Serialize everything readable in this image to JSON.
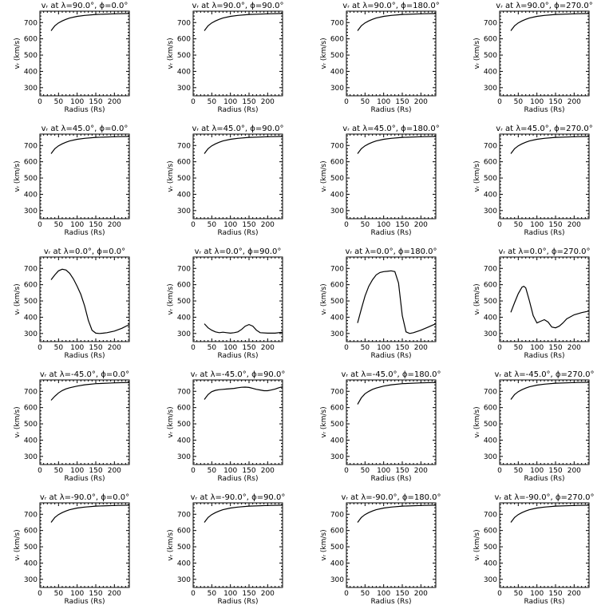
{
  "chart_data": [
    {
      "type": "line",
      "title": "vᵣ at λ=90.0°, ϕ=0.0°",
      "xlabel": "Radius (Rs)",
      "ylabel": "vᵣ (km/s)",
      "xlim": [
        0,
        240
      ],
      "ylim": [
        250,
        770
      ],
      "xticks": [
        0,
        50,
        100,
        150,
        200
      ],
      "yticks": [
        300,
        400,
        500,
        600,
        700
      ],
      "grid": false,
      "series": [
        {
          "x": [
            30,
            40,
            50,
            60,
            70,
            80,
            100,
            120,
            150,
            200,
            240
          ],
          "y": [
            650,
            680,
            698,
            710,
            720,
            728,
            738,
            744,
            750,
            754,
            756
          ]
        }
      ]
    },
    {
      "type": "line",
      "title": "vᵣ at λ=90.0°, ϕ=90.0°",
      "xlabel": "Radius (Rs)",
      "ylabel": "vᵣ (km/s)",
      "xlim": [
        0,
        240
      ],
      "ylim": [
        250,
        770
      ],
      "xticks": [
        0,
        50,
        100,
        150,
        200
      ],
      "yticks": [
        300,
        400,
        500,
        600,
        700
      ],
      "grid": false,
      "series": [
        {
          "x": [
            30,
            40,
            50,
            60,
            70,
            80,
            100,
            120,
            150,
            200,
            240
          ],
          "y": [
            650,
            680,
            698,
            710,
            720,
            728,
            738,
            744,
            750,
            754,
            756
          ]
        }
      ]
    },
    {
      "type": "line",
      "title": "vᵣ at λ=90.0°, ϕ=180.0°",
      "xlabel": "Radius (Rs)",
      "ylabel": "vᵣ (km/s)",
      "xlim": [
        0,
        240
      ],
      "ylim": [
        250,
        770
      ],
      "xticks": [
        0,
        50,
        100,
        150,
        200
      ],
      "yticks": [
        300,
        400,
        500,
        600,
        700
      ],
      "grid": false,
      "series": [
        {
          "x": [
            30,
            40,
            50,
            60,
            70,
            80,
            100,
            120,
            150,
            200,
            240
          ],
          "y": [
            650,
            680,
            698,
            710,
            720,
            728,
            738,
            744,
            750,
            754,
            756
          ]
        }
      ]
    },
    {
      "type": "line",
      "title": "vᵣ at λ=90.0°, ϕ=270.0°",
      "xlabel": "Radius (Rs)",
      "ylabel": "vᵣ (km/s)",
      "xlim": [
        0,
        240
      ],
      "ylim": [
        250,
        770
      ],
      "xticks": [
        0,
        50,
        100,
        150,
        200
      ],
      "yticks": [
        300,
        400,
        500,
        600,
        700
      ],
      "grid": false,
      "series": [
        {
          "x": [
            30,
            40,
            50,
            60,
            70,
            80,
            100,
            120,
            150,
            200,
            240
          ],
          "y": [
            650,
            680,
            698,
            710,
            720,
            728,
            738,
            744,
            750,
            754,
            756
          ]
        }
      ]
    },
    {
      "type": "line",
      "title": "vᵣ at λ=45.0°, ϕ=0.0°",
      "xlabel": "Radius (Rs)",
      "ylabel": "vᵣ (km/s)",
      "xlim": [
        0,
        240
      ],
      "ylim": [
        250,
        770
      ],
      "xticks": [
        0,
        50,
        100,
        150,
        200
      ],
      "yticks": [
        300,
        400,
        500,
        600,
        700
      ],
      "grid": false,
      "series": [
        {
          "x": [
            30,
            40,
            50,
            60,
            70,
            80,
            100,
            120,
            150,
            200,
            240
          ],
          "y": [
            650,
            680,
            698,
            710,
            720,
            728,
            738,
            744,
            750,
            754,
            756
          ]
        }
      ]
    },
    {
      "type": "line",
      "title": "vᵣ at λ=45.0°, ϕ=90.0°",
      "xlabel": "Radius (Rs)",
      "ylabel": "vᵣ (km/s)",
      "xlim": [
        0,
        240
      ],
      "ylim": [
        250,
        770
      ],
      "xticks": [
        0,
        50,
        100,
        150,
        200
      ],
      "yticks": [
        300,
        400,
        500,
        600,
        700
      ],
      "grid": false,
      "series": [
        {
          "x": [
            30,
            40,
            50,
            60,
            70,
            80,
            100,
            120,
            150,
            200,
            240
          ],
          "y": [
            650,
            680,
            698,
            710,
            720,
            728,
            738,
            744,
            750,
            754,
            756
          ]
        }
      ]
    },
    {
      "type": "line",
      "title": "vᵣ at λ=45.0°, ϕ=180.0°",
      "xlabel": "Radius (Rs)",
      "ylabel": "vᵣ (km/s)",
      "xlim": [
        0,
        240
      ],
      "ylim": [
        250,
        770
      ],
      "xticks": [
        0,
        50,
        100,
        150,
        200
      ],
      "yticks": [
        300,
        400,
        500,
        600,
        700
      ],
      "grid": false,
      "series": [
        {
          "x": [
            30,
            40,
            50,
            60,
            70,
            80,
            100,
            120,
            150,
            200,
            240
          ],
          "y": [
            650,
            680,
            698,
            710,
            720,
            728,
            738,
            744,
            750,
            754,
            756
          ]
        }
      ]
    },
    {
      "type": "line",
      "title": "vᵣ at λ=45.0°, ϕ=270.0°",
      "xlabel": "Radius (Rs)",
      "ylabel": "vᵣ (km/s)",
      "xlim": [
        0,
        240
      ],
      "ylim": [
        250,
        770
      ],
      "xticks": [
        0,
        50,
        100,
        150,
        200
      ],
      "yticks": [
        300,
        400,
        500,
        600,
        700
      ],
      "grid": false,
      "series": [
        {
          "x": [
            30,
            40,
            50,
            60,
            70,
            80,
            100,
            120,
            150,
            200,
            240
          ],
          "y": [
            650,
            680,
            698,
            710,
            720,
            728,
            738,
            744,
            750,
            754,
            756
          ]
        }
      ]
    },
    {
      "type": "line",
      "title": "vᵣ at λ=0.0°, ϕ=0.0°",
      "xlabel": "Radius (Rs)",
      "ylabel": "vᵣ (km/s)",
      "xlim": [
        0,
        240
      ],
      "ylim": [
        250,
        770
      ],
      "xticks": [
        0,
        50,
        100,
        150,
        200
      ],
      "yticks": [
        300,
        400,
        500,
        600,
        700
      ],
      "grid": false,
      "series": [
        {
          "x": [
            30,
            40,
            50,
            60,
            70,
            80,
            90,
            100,
            110,
            120,
            130,
            140,
            150,
            160,
            170,
            180,
            200,
            220,
            240
          ],
          "y": [
            630,
            660,
            685,
            695,
            690,
            670,
            635,
            590,
            540,
            470,
            380,
            320,
            302,
            300,
            302,
            305,
            315,
            332,
            355
          ]
        }
      ]
    },
    {
      "type": "line",
      "title": "vᵣ at λ=0.0°, ϕ=90.0°",
      "xlabel": "Radius (Rs)",
      "ylabel": "vᵣ (km/s)",
      "xlim": [
        0,
        240
      ],
      "ylim": [
        250,
        770
      ],
      "xticks": [
        0,
        50,
        100,
        150,
        200
      ],
      "yticks": [
        300,
        400,
        500,
        600,
        700
      ],
      "grid": false,
      "series": [
        {
          "x": [
            30,
            40,
            50,
            60,
            70,
            80,
            90,
            100,
            110,
            120,
            130,
            140,
            150,
            160,
            170,
            180,
            200,
            220,
            240
          ],
          "y": [
            360,
            335,
            320,
            310,
            305,
            308,
            305,
            302,
            305,
            310,
            325,
            345,
            355,
            345,
            320,
            305,
            302,
            302,
            308
          ]
        }
      ]
    },
    {
      "type": "line",
      "title": "vᵣ at λ=0.0°, ϕ=180.0°",
      "xlabel": "Radius (Rs)",
      "ylabel": "vᵣ (km/s)",
      "xlim": [
        0,
        240
      ],
      "ylim": [
        250,
        770
      ],
      "xticks": [
        0,
        50,
        100,
        150,
        200
      ],
      "yticks": [
        300,
        400,
        500,
        600,
        700
      ],
      "grid": false,
      "series": [
        {
          "x": [
            30,
            40,
            50,
            60,
            70,
            80,
            90,
            100,
            110,
            120,
            130,
            140,
            150,
            160,
            170,
            180,
            200,
            220,
            240
          ],
          "y": [
            365,
            450,
            530,
            590,
            630,
            660,
            675,
            680,
            682,
            685,
            680,
            610,
            410,
            310,
            300,
            305,
            320,
            340,
            360
          ]
        }
      ]
    },
    {
      "type": "line",
      "title": "vᵣ at λ=0.0°, ϕ=270.0°",
      "xlabel": "Radius (Rs)",
      "ylabel": "vᵣ (km/s)",
      "xlim": [
        0,
        240
      ],
      "ylim": [
        250,
        770
      ],
      "xticks": [
        0,
        50,
        100,
        150,
        200
      ],
      "yticks": [
        300,
        400,
        500,
        600,
        700
      ],
      "grid": false,
      "series": [
        {
          "x": [
            30,
            40,
            50,
            60,
            65,
            70,
            80,
            90,
            100,
            110,
            120,
            130,
            140,
            150,
            160,
            170,
            180,
            200,
            220,
            240
          ],
          "y": [
            430,
            490,
            545,
            585,
            590,
            580,
            500,
            410,
            365,
            375,
            385,
            370,
            340,
            335,
            345,
            365,
            390,
            415,
            428,
            438
          ]
        }
      ]
    },
    {
      "type": "line",
      "title": "vᵣ at λ=-45.0°, ϕ=0.0°",
      "xlabel": "Radius (Rs)",
      "ylabel": "vᵣ (km/s)",
      "xlim": [
        0,
        240
      ],
      "ylim": [
        250,
        770
      ],
      "xticks": [
        0,
        50,
        100,
        150,
        200
      ],
      "yticks": [
        300,
        400,
        500,
        600,
        700
      ],
      "grid": false,
      "series": [
        {
          "x": [
            30,
            40,
            50,
            60,
            70,
            80,
            100,
            120,
            150,
            200,
            240
          ],
          "y": [
            645,
            670,
            690,
            705,
            715,
            722,
            732,
            740,
            747,
            752,
            755
          ]
        }
      ]
    },
    {
      "type": "line",
      "title": "vᵣ at λ=-45.0°, ϕ=90.0°",
      "xlabel": "Radius (Rs)",
      "ylabel": "vᵣ (km/s)",
      "xlim": [
        0,
        240
      ],
      "ylim": [
        250,
        770
      ],
      "xticks": [
        0,
        50,
        100,
        150,
        200
      ],
      "yticks": [
        300,
        400,
        500,
        600,
        700
      ],
      "grid": false,
      "series": [
        {
          "x": [
            30,
            40,
            50,
            60,
            70,
            80,
            90,
            100,
            110,
            120,
            130,
            140,
            150,
            160,
            170,
            180,
            190,
            200,
            210,
            220,
            230,
            240
          ],
          "y": [
            650,
            680,
            698,
            706,
            710,
            712,
            714,
            716,
            718,
            722,
            725,
            726,
            724,
            718,
            712,
            708,
            704,
            704,
            708,
            714,
            722,
            728
          ]
        }
      ]
    },
    {
      "type": "line",
      "title": "vᵣ at λ=-45.0°, ϕ=180.0°",
      "xlabel": "Radius (Rs)",
      "ylabel": "vᵣ (km/s)",
      "xlim": [
        0,
        240
      ],
      "ylim": [
        250,
        770
      ],
      "xticks": [
        0,
        50,
        100,
        150,
        200
      ],
      "yticks": [
        300,
        400,
        500,
        600,
        700
      ],
      "grid": false,
      "series": [
        {
          "x": [
            30,
            40,
            50,
            60,
            70,
            80,
            100,
            120,
            150,
            200,
            240
          ],
          "y": [
            620,
            660,
            685,
            700,
            712,
            720,
            732,
            740,
            747,
            752,
            755
          ]
        }
      ]
    },
    {
      "type": "line",
      "title": "vᵣ at λ=-45.0°, ϕ=270.0°",
      "xlabel": "Radius (Rs)",
      "ylabel": "vᵣ (km/s)",
      "xlim": [
        0,
        240
      ],
      "ylim": [
        250,
        770
      ],
      "xticks": [
        0,
        50,
        100,
        150,
        200
      ],
      "yticks": [
        300,
        400,
        500,
        600,
        700
      ],
      "grid": false,
      "series": [
        {
          "x": [
            30,
            40,
            50,
            60,
            70,
            80,
            100,
            120,
            150,
            200,
            240
          ],
          "y": [
            650,
            680,
            698,
            710,
            720,
            728,
            738,
            744,
            750,
            754,
            756
          ]
        }
      ]
    },
    {
      "type": "line",
      "title": "vᵣ at λ=-90.0°, ϕ=0.0°",
      "xlabel": "Radius (Rs)",
      "ylabel": "vᵣ (km/s)",
      "xlim": [
        0,
        240
      ],
      "ylim": [
        250,
        770
      ],
      "xticks": [
        0,
        50,
        100,
        150,
        200
      ],
      "yticks": [
        300,
        400,
        500,
        600,
        700
      ],
      "grid": false,
      "series": [
        {
          "x": [
            30,
            40,
            50,
            60,
            70,
            80,
            100,
            120,
            150,
            200,
            240
          ],
          "y": [
            650,
            680,
            698,
            710,
            720,
            728,
            738,
            744,
            750,
            754,
            756
          ]
        }
      ]
    },
    {
      "type": "line",
      "title": "vᵣ at λ=-90.0°, ϕ=90.0°",
      "xlabel": "Radius (Rs)",
      "ylabel": "vᵣ (km/s)",
      "xlim": [
        0,
        240
      ],
      "ylim": [
        250,
        770
      ],
      "xticks": [
        0,
        50,
        100,
        150,
        200
      ],
      "yticks": [
        300,
        400,
        500,
        600,
        700
      ],
      "grid": false,
      "series": [
        {
          "x": [
            30,
            40,
            50,
            60,
            70,
            80,
            100,
            120,
            150,
            200,
            240
          ],
          "y": [
            650,
            680,
            698,
            710,
            720,
            728,
            738,
            744,
            750,
            754,
            756
          ]
        }
      ]
    },
    {
      "type": "line",
      "title": "vᵣ at λ=-90.0°, ϕ=180.0°",
      "xlabel": "Radius (Rs)",
      "ylabel": "vᵣ (km/s)",
      "xlim": [
        0,
        240
      ],
      "ylim": [
        250,
        770
      ],
      "xticks": [
        0,
        50,
        100,
        150,
        200
      ],
      "yticks": [
        300,
        400,
        500,
        600,
        700
      ],
      "grid": false,
      "series": [
        {
          "x": [
            30,
            40,
            50,
            60,
            70,
            80,
            100,
            120,
            150,
            200,
            240
          ],
          "y": [
            650,
            680,
            698,
            710,
            720,
            728,
            738,
            744,
            750,
            754,
            756
          ]
        }
      ]
    },
    {
      "type": "line",
      "title": "vᵣ at λ=-90.0°, ϕ=270.0°",
      "xlabel": "Radius (Rs)",
      "ylabel": "vᵣ (km/s)",
      "xlim": [
        0,
        240
      ],
      "ylim": [
        250,
        770
      ],
      "xticks": [
        0,
        50,
        100,
        150,
        200
      ],
      "yticks": [
        300,
        400,
        500,
        600,
        700
      ],
      "grid": false,
      "series": [
        {
          "x": [
            30,
            40,
            50,
            60,
            70,
            80,
            100,
            120,
            150,
            200,
            240
          ],
          "y": [
            650,
            680,
            698,
            710,
            720,
            728,
            738,
            744,
            750,
            754,
            756
          ]
        }
      ]
    }
  ]
}
